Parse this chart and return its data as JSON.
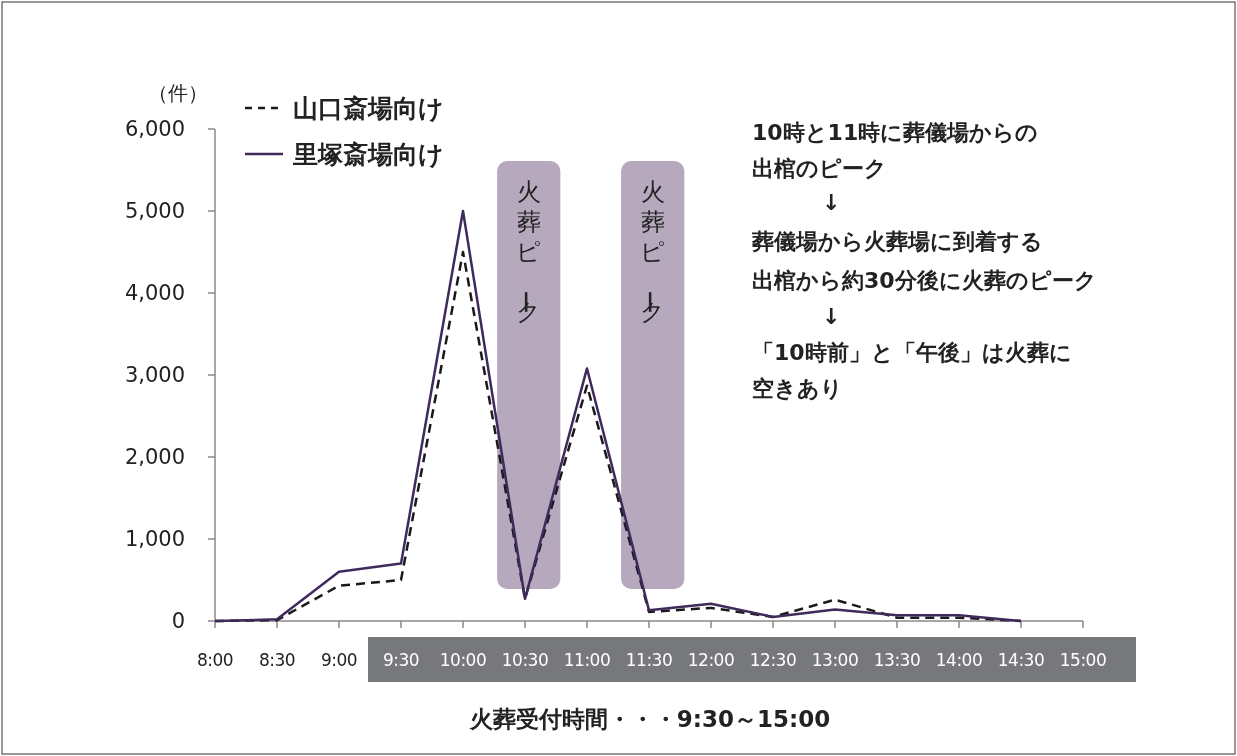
{
  "chart_data": {
    "type": "line",
    "ylabel": "（件）",
    "categories": [
      "8:00",
      "8:30",
      "9:00",
      "9:30",
      "10:00",
      "10:30",
      "11:00",
      "11:30",
      "12:00",
      "12:30",
      "13:00",
      "13:30",
      "14:00",
      "14:30",
      "15:00"
    ],
    "series": [
      {
        "name": "山口斎場向け",
        "color": "#1a1a1a",
        "line_style": "dashed",
        "values": [
          0,
          10,
          430,
          500,
          4500,
          270,
          2870,
          110,
          160,
          50,
          260,
          40,
          40,
          0,
          null
        ]
      },
      {
        "name": "里塚斎場向け",
        "color": "#3f2a5c",
        "line_style": "solid",
        "values": [
          0,
          20,
          600,
          700,
          5000,
          270,
          3080,
          130,
          210,
          50,
          140,
          70,
          70,
          0,
          null
        ]
      }
    ],
    "ylim": [
      0,
      6000
    ],
    "yticks": [
      {
        "value": 0,
        "label": "0"
      },
      {
        "value": 1000,
        "label": "1,000"
      },
      {
        "value": 2000,
        "label": "2,000"
      },
      {
        "value": 3000,
        "label": "3,000"
      },
      {
        "value": 4000,
        "label": "4,000"
      },
      {
        "value": 5000,
        "label": "5,000"
      },
      {
        "value": 6000,
        "label": "6,000"
      }
    ],
    "bands": [
      {
        "axis": "x",
        "from": "10:30",
        "to": "10:30",
        "label": "火葬ピーク",
        "color": "#b6a9bd"
      },
      {
        "axis": "x",
        "from": "11:30",
        "to": "11:30",
        "label": "火葬ピーク",
        "color": "#b6a9bd"
      }
    ],
    "annotations": [
      "10時と11時に葬儀場からの",
      "出棺のピーク",
      "↓",
      "葬儀場から火葬場に到着する",
      "出棺から約30分後に火葬のピーク",
      "↓",
      "「10時前」と「午後」は火葬に",
      "空きあり",
      "火葬受付時間・・・9:30～15:00"
    ],
    "legend": "top left",
    "grid": false
  }
}
